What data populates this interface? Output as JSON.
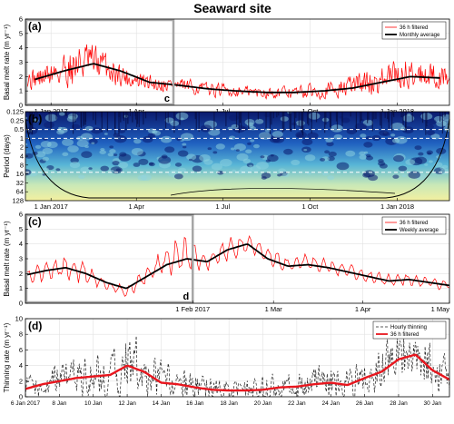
{
  "title": "Seaward site",
  "chart_data": [
    {
      "panel": "a",
      "type": "line",
      "ylabel": "Basal melt rate (m yr⁻¹)",
      "ylim": [
        0,
        6
      ],
      "yticks": [
        0,
        1,
        2,
        3,
        4,
        5,
        6
      ],
      "xlim": [
        "2016-12-05",
        "2018-02-25"
      ],
      "xticks": [
        "2017-01-01",
        "2017-04-01",
        "2017-07-01",
        "2017-10-01",
        "2018-01-01"
      ],
      "xtick_labels": [
        "1 Jan 2017",
        "1 Apr",
        "1 Jul",
        "1 Oct",
        "1 Jan 2018"
      ],
      "legend": [
        "36 h filtered",
        "Monthly average"
      ],
      "legend_position": "top-right",
      "inset_label": "c",
      "inset_range": [
        "2016-12-05",
        "2017-05-10"
      ],
      "series": [
        {
          "name": "36 h filtered",
          "color": "#ff0000",
          "kind": "noisy",
          "x": [
            "2016-12-05",
            "2016-12-20",
            "2017-01-05",
            "2017-01-20",
            "2017-02-05",
            "2017-02-20",
            "2017-03-05",
            "2017-03-20",
            "2017-04-05",
            "2017-04-20",
            "2017-05-05",
            "2017-05-20",
            "2017-06-05",
            "2017-06-20",
            "2017-07-05",
            "2017-07-20",
            "2017-08-05",
            "2017-08-20",
            "2017-09-05",
            "2017-09-20",
            "2017-10-05",
            "2017-10-20",
            "2017-11-05",
            "2017-11-20",
            "2017-12-05",
            "2017-12-20",
            "2018-01-05",
            "2018-01-20",
            "2018-02-05",
            "2018-02-25"
          ],
          "values": [
            1.8,
            1.9,
            2.3,
            2.7,
            3.0,
            2.9,
            2.5,
            2.0,
            1.6,
            1.5,
            1.5,
            1.3,
            1.2,
            1.1,
            1.0,
            1.0,
            0.9,
            0.9,
            0.9,
            0.9,
            1.0,
            1.1,
            1.2,
            1.5,
            1.6,
            1.8,
            2.2,
            2.3,
            2.1,
            1.9
          ],
          "amplitude": [
            0.6,
            0.7,
            1.0,
            1.3,
            1.3,
            1.1,
            0.9,
            0.7,
            0.6,
            0.5,
            0.5,
            0.45,
            0.4,
            0.4,
            0.4,
            0.35,
            0.35,
            0.35,
            0.35,
            0.4,
            0.45,
            0.5,
            0.6,
            0.7,
            0.8,
            0.9,
            1.0,
            0.9,
            0.8,
            0.7
          ]
        },
        {
          "name": "Monthly average",
          "color": "#000000",
          "kind": "smooth",
          "x": [
            "2016-12-15",
            "2017-01-15",
            "2017-02-15",
            "2017-03-15",
            "2017-04-15",
            "2017-05-15",
            "2017-06-15",
            "2017-07-15",
            "2017-08-15",
            "2017-09-15",
            "2017-10-15",
            "2017-11-15",
            "2017-12-15",
            "2018-01-15",
            "2018-02-15"
          ],
          "values": [
            1.8,
            2.4,
            2.9,
            2.4,
            1.6,
            1.4,
            1.15,
            1.0,
            0.9,
            0.9,
            1.0,
            1.2,
            1.6,
            2.0,
            1.9
          ]
        }
      ]
    },
    {
      "panel": "b",
      "type": "heatmap",
      "ylabel": "Period (days)",
      "yscale": "log2",
      "ylim": [
        0.125,
        128
      ],
      "yticks": [
        0.125,
        0.25,
        0.5,
        1,
        2,
        4,
        8,
        16,
        32,
        64,
        128
      ],
      "ytick_labels": [
        "0.125",
        "0.25",
        "0.5",
        "1",
        "2",
        "4",
        "8",
        "16",
        "32",
        "64",
        "128"
      ],
      "xlim": [
        "2016-12-05",
        "2018-02-25"
      ],
      "xticks": [
        "2017-01-01",
        "2017-04-01",
        "2017-07-01",
        "2017-10-01",
        "2018-01-01"
      ],
      "xtick_labels": [
        "1 Jan 2017",
        "1 Apr",
        "1 Jul",
        "1 Oct",
        "1 Jan 2018"
      ],
      "reference_periods": [
        0.5,
        1,
        14
      ],
      "colormap": [
        "#0a1a6e",
        "#1f5fbf",
        "#59b6d6",
        "#c8e8b8",
        "#f4f0a0"
      ]
    },
    {
      "panel": "c",
      "type": "line",
      "ylabel": "Basal melt rate (m yr⁻¹)",
      "ylim": [
        0,
        6
      ],
      "yticks": [
        0,
        1,
        2,
        3,
        4,
        5,
        6
      ],
      "xlim": [
        "2016-12-05",
        "2017-05-01"
      ],
      "xticks": [
        "2017-02-01",
        "2017-03-01",
        "2017-04-01",
        "2017-05-01"
      ],
      "xtick_labels": [
        "1 Feb 2017",
        "1 Mar",
        "1 Apr",
        "1 May"
      ],
      "legend": [
        "36 h filtered",
        "Weekly average"
      ],
      "legend_position": "top-right",
      "inset_label": "d",
      "inset_range": [
        "2016-12-05",
        "2017-02-01"
      ],
      "series": [
        {
          "name": "36 h filtered",
          "color": "#ff0000",
          "kind": "wavy",
          "x": [
            "2016-12-05",
            "2016-12-12",
            "2016-12-19",
            "2016-12-26",
            "2017-01-02",
            "2017-01-09",
            "2017-01-16",
            "2017-01-23",
            "2017-01-30",
            "2017-02-06",
            "2017-02-13",
            "2017-02-20",
            "2017-02-27",
            "2017-03-06",
            "2017-03-13",
            "2017-03-20",
            "2017-03-27",
            "2017-04-03",
            "2017-04-10",
            "2017-04-17",
            "2017-04-24",
            "2017-05-01"
          ],
          "values": [
            1.8,
            2.2,
            2.5,
            2.0,
            1.2,
            0.8,
            1.8,
            3.0,
            3.2,
            2.8,
            3.6,
            4.0,
            3.2,
            2.6,
            2.8,
            2.5,
            2.2,
            1.8,
            1.5,
            1.6,
            1.4,
            1.2
          ],
          "amplitude": [
            0.7,
            0.9,
            1.2,
            1.0,
            0.6,
            0.5,
            0.8,
            1.5,
            1.8,
            0.9,
            1.1,
            1.0,
            0.8,
            0.7,
            0.7,
            0.7,
            0.6,
            0.6,
            0.6,
            0.6,
            0.5,
            0.5
          ]
        },
        {
          "name": "Weekly average",
          "color": "#000000",
          "kind": "smooth",
          "x": [
            "2016-12-05",
            "2016-12-12",
            "2016-12-19",
            "2016-12-26",
            "2017-01-02",
            "2017-01-09",
            "2017-01-16",
            "2017-01-23",
            "2017-01-30",
            "2017-02-06",
            "2017-02-13",
            "2017-02-20",
            "2017-02-27",
            "2017-03-06",
            "2017-03-13",
            "2017-03-20",
            "2017-03-27",
            "2017-04-03",
            "2017-04-10",
            "2017-04-17",
            "2017-04-24",
            "2017-05-01"
          ],
          "values": [
            1.9,
            2.2,
            2.4,
            2.0,
            1.4,
            1.0,
            1.8,
            2.6,
            3.0,
            2.8,
            3.6,
            4.0,
            3.0,
            2.5,
            2.6,
            2.4,
            2.1,
            1.8,
            1.5,
            1.6,
            1.4,
            1.2
          ]
        }
      ]
    },
    {
      "panel": "d",
      "type": "line",
      "ylabel": "Thinning rate (m yr⁻¹)",
      "ylim": [
        0,
        10
      ],
      "yticks": [
        0,
        2,
        4,
        6,
        8,
        10
      ],
      "xlim": [
        "2017-01-06",
        "2017-01-31"
      ],
      "xticks": [
        "2017-01-06",
        "2017-01-08",
        "2017-01-10",
        "2017-01-12",
        "2017-01-14",
        "2017-01-16",
        "2017-01-18",
        "2017-01-20",
        "2017-01-22",
        "2017-01-24",
        "2017-01-26",
        "2017-01-28",
        "2017-01-30"
      ],
      "xtick_labels": [
        "6 Jan 2017",
        "8 Jan",
        "10 Jan",
        "12 Jan",
        "14 Jan",
        "16 Jan",
        "18 Jan",
        "20 Jan",
        "22 Jan",
        "24 Jan",
        "26 Jan",
        "28 Jan",
        "30 Jan"
      ],
      "legend": [
        "Hourly thinning",
        "36 h filtered"
      ],
      "legend_position": "top-right",
      "series": [
        {
          "name": "Hourly thinning",
          "color": "#222222",
          "kind": "dashed-noisy",
          "x": [
            "2017-01-06",
            "2017-01-07",
            "2017-01-08",
            "2017-01-09",
            "2017-01-10",
            "2017-01-11",
            "2017-01-12",
            "2017-01-13",
            "2017-01-14",
            "2017-01-15",
            "2017-01-16",
            "2017-01-17",
            "2017-01-18",
            "2017-01-19",
            "2017-01-20",
            "2017-01-21",
            "2017-01-22",
            "2017-01-23",
            "2017-01-24",
            "2017-01-25",
            "2017-01-26",
            "2017-01-27",
            "2017-01-28",
            "2017-01-29",
            "2017-01-30",
            "2017-01-31"
          ],
          "values": [
            1.0,
            1.6,
            2.2,
            2.6,
            2.8,
            2.9,
            4.2,
            3.4,
            2.0,
            1.8,
            1.2,
            1.0,
            0.9,
            0.8,
            1.0,
            1.3,
            1.4,
            1.8,
            2.0,
            1.6,
            2.6,
            3.4,
            5.2,
            5.5,
            3.8,
            2.4
          ],
          "amplitude": [
            1.4,
            1.6,
            2.0,
            2.2,
            2.4,
            2.6,
            3.6,
            3.0,
            2.2,
            2.0,
            1.6,
            1.4,
            1.2,
            1.2,
            1.4,
            1.6,
            1.6,
            1.8,
            1.8,
            1.8,
            2.2,
            2.6,
            3.0,
            3.0,
            2.6,
            2.0
          ]
        },
        {
          "name": "36 h filtered",
          "color": "#e8161e",
          "kind": "smooth",
          "x": [
            "2017-01-06",
            "2017-01-07",
            "2017-01-08",
            "2017-01-09",
            "2017-01-10",
            "2017-01-11",
            "2017-01-12",
            "2017-01-13",
            "2017-01-14",
            "2017-01-15",
            "2017-01-16",
            "2017-01-17",
            "2017-01-18",
            "2017-01-19",
            "2017-01-20",
            "2017-01-21",
            "2017-01-22",
            "2017-01-23",
            "2017-01-24",
            "2017-01-25",
            "2017-01-26",
            "2017-01-27",
            "2017-01-28",
            "2017-01-29",
            "2017-01-30",
            "2017-01-31"
          ],
          "values": [
            1.0,
            1.6,
            2.0,
            2.4,
            2.6,
            2.8,
            4.0,
            3.2,
            1.8,
            1.6,
            1.2,
            0.9,
            0.8,
            0.8,
            0.9,
            1.2,
            1.3,
            1.6,
            1.8,
            1.5,
            2.4,
            3.2,
            4.8,
            5.4,
            3.4,
            2.2
          ]
        }
      ]
    }
  ]
}
